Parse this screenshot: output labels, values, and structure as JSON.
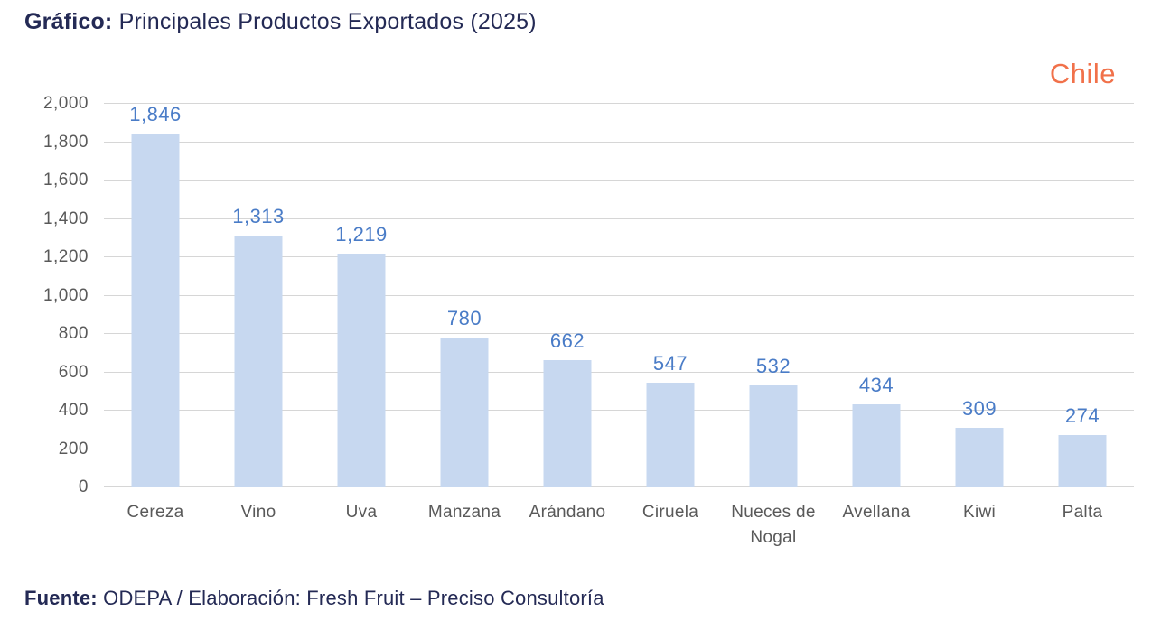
{
  "header": {
    "title_prefix": "Gráfico:",
    "title_text": "Principales Productos Exportados (2025)",
    "country_label": "Chile"
  },
  "footer": {
    "source_prefix": "Fuente:",
    "source_text": "ODEPA / Elaboración: Fresh Fruit – Preciso Consultoría"
  },
  "colors": {
    "title_navy": "#242A55",
    "country_orange": "#F1714A",
    "bar_fill": "#C7D8F0",
    "value_label_blue": "#4A7CC7",
    "axis_text_gray": "#595959",
    "gridline_gray": "#D6D6D6"
  },
  "chart_data": {
    "type": "bar",
    "title": "Principales Productos Exportados (2025)",
    "categories": [
      "Cereza",
      "Vino",
      "Uva",
      "Manzana",
      "Arándano",
      "Ciruela",
      "Nueces de Nogal",
      "Avellana",
      "Kiwi",
      "Palta"
    ],
    "values": [
      1846,
      1313,
      1219,
      780,
      662,
      547,
      532,
      434,
      309,
      274
    ],
    "value_labels": [
      "1,846",
      "1,313",
      "1,219",
      "780",
      "662",
      "547",
      "532",
      "434",
      "309",
      "274"
    ],
    "xlabel": "",
    "ylabel": "",
    "ylim": [
      0,
      2000
    ],
    "yticks": [
      0,
      200,
      400,
      600,
      800,
      1000,
      1200,
      1400,
      1600,
      1800,
      2000
    ],
    "ytick_labels": [
      "0",
      "200",
      "400",
      "600",
      "800",
      "1,000",
      "1,200",
      "1,400",
      "1,600",
      "1,800",
      "2,000"
    ],
    "grid": true,
    "legend_position": "none",
    "bar_color": "#C7D8F0",
    "value_label_color": "#4A7CC7"
  }
}
